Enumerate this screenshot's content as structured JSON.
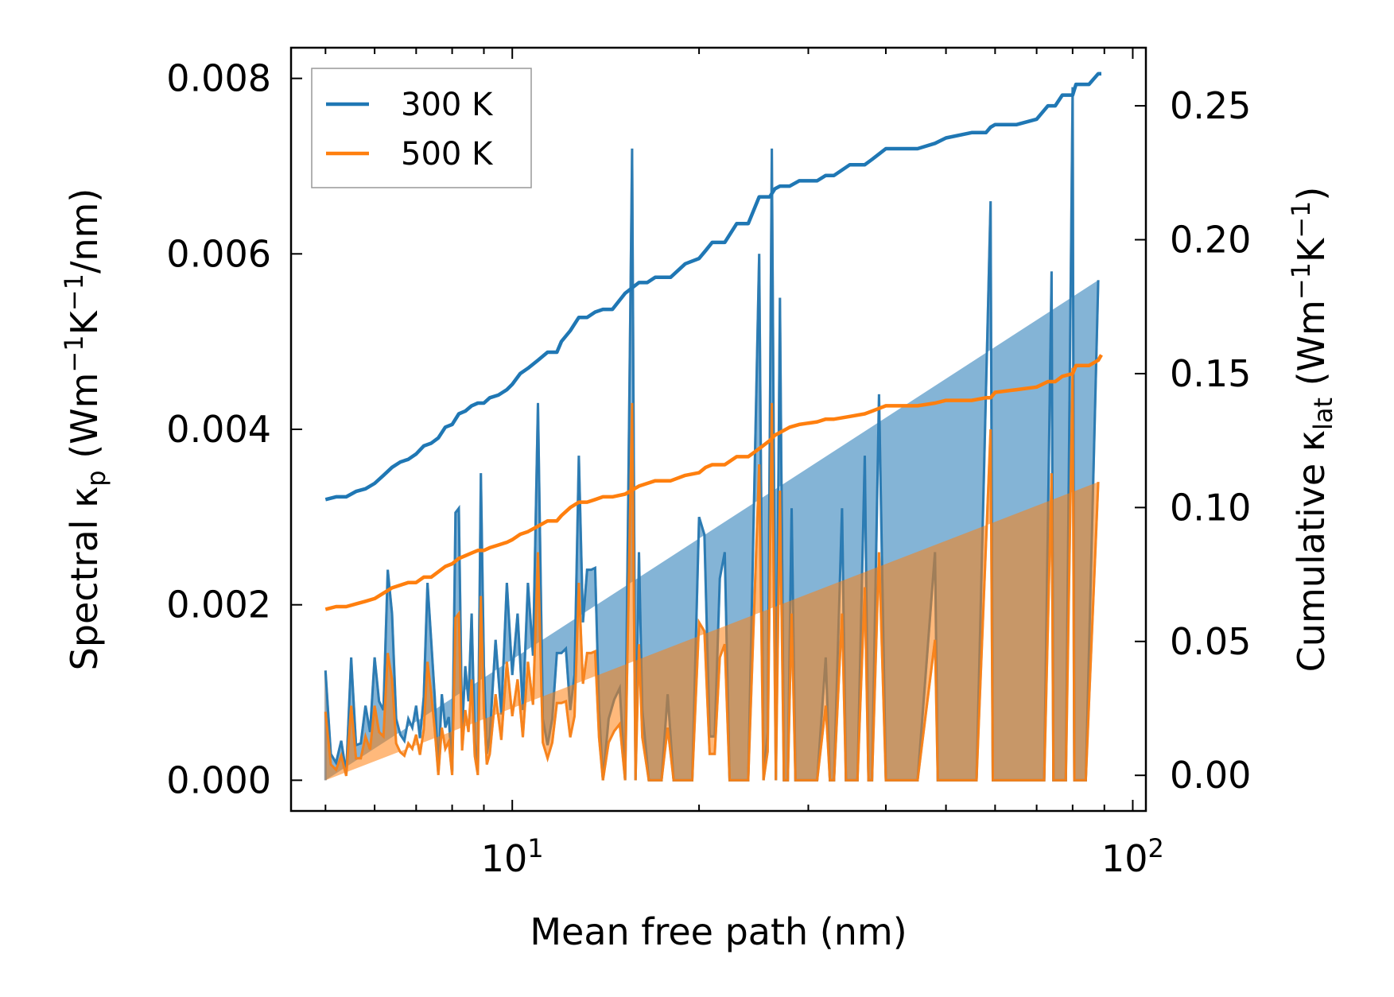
{
  "chart_data": {
    "type": "line",
    "xscale": "log",
    "xlim": [
      4.4,
      105
    ],
    "ylim_left": [
      -0.00035,
      0.00835
    ],
    "ylim_right": [
      -0.0133,
      0.2717
    ],
    "xlabel": "Mean free path (nm)",
    "ylabel_left": {
      "base": "Spectral κ",
      "sub": "p",
      "open": " (Wm",
      "sup1": "−1",
      "mid": "K",
      "sup2": "−1",
      "close": "/nm)"
    },
    "ylabel_right": {
      "base": "Cumulative κ",
      "sub": "lat",
      "open": " (Wm",
      "sup1": "−1",
      "mid": "K",
      "sup2": "−1",
      "close": ")"
    },
    "x_ticks": [
      {
        "value": 10,
        "base": "10",
        "exp": "1"
      },
      {
        "value": 100,
        "base": "10",
        "exp": "2"
      }
    ],
    "y_ticks_left": [
      {
        "value": 0.0,
        "label": "0.000"
      },
      {
        "value": 0.002,
        "label": "0.002"
      },
      {
        "value": 0.004,
        "label": "0.004"
      },
      {
        "value": 0.006,
        "label": "0.006"
      },
      {
        "value": 0.008,
        "label": "0.008"
      }
    ],
    "y_ticks_right": [
      {
        "value": 0.0,
        "label": "0.00"
      },
      {
        "value": 0.05,
        "label": "0.05"
      },
      {
        "value": 0.1,
        "label": "0.10"
      },
      {
        "value": 0.15,
        "label": "0.15"
      },
      {
        "value": 0.2,
        "label": "0.20"
      },
      {
        "value": 0.25,
        "label": "0.25"
      }
    ],
    "legend": {
      "position": "upper-left",
      "entries": [
        {
          "name": "300 K",
          "color": "#1f77b4"
        },
        {
          "name": "500 K",
          "color": "#ff7f0e"
        }
      ]
    },
    "spectral": {
      "x": [
        5.0,
        5.1,
        5.2,
        5.3,
        5.4,
        5.5,
        5.6,
        5.7,
        5.8,
        5.9,
        6.0,
        6.1,
        6.2,
        6.3,
        6.4,
        6.5,
        6.6,
        6.7,
        6.8,
        6.9,
        7.0,
        7.1,
        7.2,
        7.3,
        7.4,
        7.5,
        7.6,
        7.7,
        7.8,
        7.9,
        8.0,
        8.1,
        8.2,
        8.3,
        8.4,
        8.5,
        8.6,
        8.7,
        8.8,
        8.9,
        9.0,
        9.1,
        9.2,
        9.4,
        9.6,
        9.8,
        10.0,
        10.2,
        10.4,
        10.6,
        10.8,
        11.0,
        11.2,
        11.4,
        11.6,
        11.8,
        12.0,
        12.2,
        12.4,
        12.6,
        12.8,
        13.0,
        13.2,
        13.4,
        13.6,
        13.8,
        14.0,
        14.3,
        14.6,
        14.9,
        15.2,
        15.6,
        15.8,
        16.0,
        16.2,
        16.6,
        17.0,
        17.4,
        17.8,
        18.2,
        18.6,
        19.0,
        19.5,
        20.0,
        20.4,
        20.8,
        21.2,
        21.6,
        22.0,
        22.4,
        22.8,
        23.2,
        24.0,
        25.0,
        25.4,
        25.8,
        26.2,
        26.6,
        27.0,
        27.4,
        27.8,
        28.2,
        28.6,
        29.0,
        29.5,
        30.0,
        31.0,
        32.0,
        32.5,
        33.0,
        34.0,
        34.5,
        35.0,
        36.0,
        37.0,
        37.5,
        38.0,
        39.0,
        40.0,
        40.5,
        41.0,
        42.0,
        45.0,
        48.0,
        48.5,
        49.0,
        52.0,
        56.0,
        59.0,
        59.5,
        60.0,
        63.0,
        66.0,
        72.0,
        74.0,
        74.5,
        75.0,
        78.0,
        80.0,
        80.5,
        81.0,
        84.0,
        88.0,
        89.0
      ],
      "k300": [
        0.00125,
        0.0003,
        0.0002,
        0.00045,
        8e-05,
        0.0014,
        0.0004,
        0.00042,
        0.00085,
        0.00055,
        0.0014,
        0.0009,
        0.0008,
        0.0024,
        0.0019,
        0.0007,
        0.00052,
        0.00045,
        0.0007,
        0.0006,
        0.00085,
        0.00048,
        0.00095,
        0.00225,
        0.0016,
        0.00095,
        0.0001,
        0.00098,
        0.0006,
        0.00072,
        0.0001,
        0.00305,
        0.0031,
        0.00055,
        0.0013,
        0.0009,
        0.0019,
        0.00045,
        0.0001,
        0.0035,
        0.0013,
        0.0003,
        0.0005,
        0.0016,
        0.00075,
        0.00225,
        0.0012,
        0.0019,
        0.0008,
        0.00225,
        0.00142,
        0.0043,
        0.0007,
        0.0004,
        0.0007,
        0.00145,
        0.00145,
        0.0015,
        0.0008,
        0.0012,
        0.0037,
        0.0018,
        0.0024,
        0.0024,
        0.00242,
        0.0008,
        0.0,
        0.0007,
        0.00092,
        0.00105,
        0.0,
        0.0072,
        0.0,
        0.0026,
        0.0008,
        0.0,
        0.0,
        0.0,
        0.00098,
        0.0,
        0.0,
        0.0,
        0.0,
        0.003,
        0.0028,
        0.0005,
        0.0005,
        0.0023,
        0.0026,
        0.0,
        0.0,
        0.0,
        0.0,
        0.006,
        0.0,
        0.00055,
        0.0072,
        0.0,
        0.0055,
        0.0,
        0.0,
        0.0031,
        0.0,
        0.0,
        0.0,
        0.0,
        0.0,
        0.0014,
        0.0,
        0.0,
        0.0031,
        0.0,
        0.0,
        0.0,
        0.0037,
        0.0,
        0.0,
        0.0044,
        0.0,
        0.0,
        0.0,
        0.0,
        0.0,
        0.0026,
        0.0,
        0.0,
        0.0,
        0.0,
        0.0066,
        0.0,
        0.0,
        0.0,
        0.0,
        0.0,
        0.0058,
        0.0,
        0.0,
        0.0,
        0.0079,
        0.0,
        0.0,
        0.0,
        0.0057
      ],
      "k500": [
        0.00078,
        0.00018,
        0.00012,
        0.00028,
        5e-05,
        0.00085,
        0.00025,
        0.00025,
        0.0005,
        0.00035,
        0.00085,
        0.00055,
        0.0005,
        0.00145,
        0.00115,
        0.00042,
        0.00032,
        0.00028,
        0.00042,
        0.00036,
        0.00052,
        0.00029,
        0.00058,
        0.00135,
        0.001,
        0.00058,
        6e-05,
        0.0006,
        0.00036,
        0.00044,
        6e-05,
        0.00185,
        0.0019,
        0.00034,
        0.0008,
        0.00055,
        0.00115,
        0.00028,
        6e-05,
        0.0021,
        0.0008,
        0.00018,
        0.0003,
        0.00098,
        0.00046,
        0.00135,
        0.00073,
        0.00115,
        0.00049,
        0.00135,
        0.00086,
        0.0026,
        0.00043,
        0.00025,
        0.00043,
        0.00088,
        0.00088,
        0.0009,
        0.00049,
        0.00073,
        0.00225,
        0.0011,
        0.00145,
        0.00145,
        0.00147,
        0.00049,
        0.0,
        0.00043,
        0.00056,
        0.00064,
        0.0,
        0.0043,
        0.0,
        0.00155,
        0.00049,
        0.0,
        0.0,
        0.0,
        0.0006,
        0.0,
        0.0,
        0.0,
        0.0,
        0.0018,
        0.0017,
        0.0003,
        0.0003,
        0.0014,
        0.00155,
        0.0,
        0.0,
        0.0,
        0.0,
        0.0036,
        0.0,
        0.00033,
        0.0043,
        0.0,
        0.0033,
        0.0,
        0.0,
        0.0019,
        0.0,
        0.0,
        0.0,
        0.0,
        0.0,
        0.00085,
        0.0,
        0.0,
        0.0019,
        0.0,
        0.0,
        0.0,
        0.0022,
        0.0,
        0.0,
        0.0026,
        0.0,
        0.0,
        0.0,
        0.0,
        0.0,
        0.0016,
        0.0,
        0.0,
        0.0,
        0.0,
        0.004,
        0.0,
        0.0,
        0.0,
        0.0,
        0.0,
        0.0035,
        0.0,
        0.0,
        0.0,
        0.0047,
        0.0,
        0.0,
        0.0,
        0.0034
      ]
    },
    "cumulative": {
      "x": [
        5.0,
        5.2,
        5.4,
        5.6,
        5.8,
        6.0,
        6.2,
        6.4,
        6.6,
        6.8,
        7.0,
        7.2,
        7.4,
        7.6,
        7.8,
        8.0,
        8.2,
        8.4,
        8.6,
        8.8,
        9.0,
        9.2,
        9.5,
        9.8,
        10.0,
        10.3,
        10.6,
        11.0,
        11.4,
        11.8,
        12.0,
        12.4,
        12.8,
        13.2,
        13.6,
        14.0,
        14.5,
        15.2,
        16.0,
        16.5,
        17.0,
        18.0,
        19.0,
        20.0,
        20.5,
        21.0,
        22.0,
        23.0,
        24.0,
        25.0,
        26.0,
        26.5,
        27.0,
        27.5,
        28.0,
        29.0,
        31.0,
        32.0,
        33.0,
        35.0,
        37.0,
        38.0,
        39.0,
        40.0,
        45.0,
        48.0,
        50.0,
        55.0,
        58.0,
        59.0,
        60.0,
        65.0,
        70.0,
        73.0,
        74.0,
        75.0,
        77.0,
        80.0,
        81.0,
        85.0,
        88.0,
        89.0
      ],
      "c300": [
        0.103,
        0.104,
        0.104,
        0.106,
        0.107,
        0.109,
        0.112,
        0.115,
        0.117,
        0.118,
        0.12,
        0.123,
        0.124,
        0.126,
        0.13,
        0.131,
        0.135,
        0.136,
        0.138,
        0.139,
        0.139,
        0.141,
        0.142,
        0.144,
        0.146,
        0.15,
        0.152,
        0.155,
        0.158,
        0.158,
        0.162,
        0.166,
        0.171,
        0.171,
        0.173,
        0.174,
        0.174,
        0.18,
        0.184,
        0.184,
        0.186,
        0.186,
        0.191,
        0.193,
        0.196,
        0.199,
        0.199,
        0.206,
        0.206,
        0.216,
        0.216,
        0.219,
        0.22,
        0.22,
        0.22,
        0.222,
        0.222,
        0.224,
        0.224,
        0.228,
        0.228,
        0.23,
        0.232,
        0.234,
        0.234,
        0.236,
        0.238,
        0.24,
        0.24,
        0.242,
        0.243,
        0.243,
        0.245,
        0.25,
        0.25,
        0.25,
        0.254,
        0.254,
        0.258,
        0.258,
        0.262,
        0.262
      ],
      "c500": [
        0.062,
        0.063,
        0.063,
        0.064,
        0.065,
        0.066,
        0.068,
        0.07,
        0.071,
        0.072,
        0.072,
        0.074,
        0.074,
        0.076,
        0.078,
        0.079,
        0.081,
        0.082,
        0.083,
        0.084,
        0.084,
        0.085,
        0.086,
        0.087,
        0.088,
        0.09,
        0.091,
        0.093,
        0.095,
        0.095,
        0.097,
        0.1,
        0.102,
        0.102,
        0.103,
        0.104,
        0.104,
        0.105,
        0.108,
        0.109,
        0.11,
        0.11,
        0.112,
        0.113,
        0.115,
        0.116,
        0.116,
        0.119,
        0.119,
        0.122,
        0.125,
        0.127,
        0.128,
        0.129,
        0.13,
        0.131,
        0.132,
        0.133,
        0.133,
        0.134,
        0.135,
        0.136,
        0.137,
        0.138,
        0.138,
        0.139,
        0.14,
        0.14,
        0.141,
        0.141,
        0.143,
        0.144,
        0.145,
        0.147,
        0.147,
        0.147,
        0.149,
        0.15,
        0.153,
        0.153,
        0.155,
        0.157
      ]
    }
  }
}
